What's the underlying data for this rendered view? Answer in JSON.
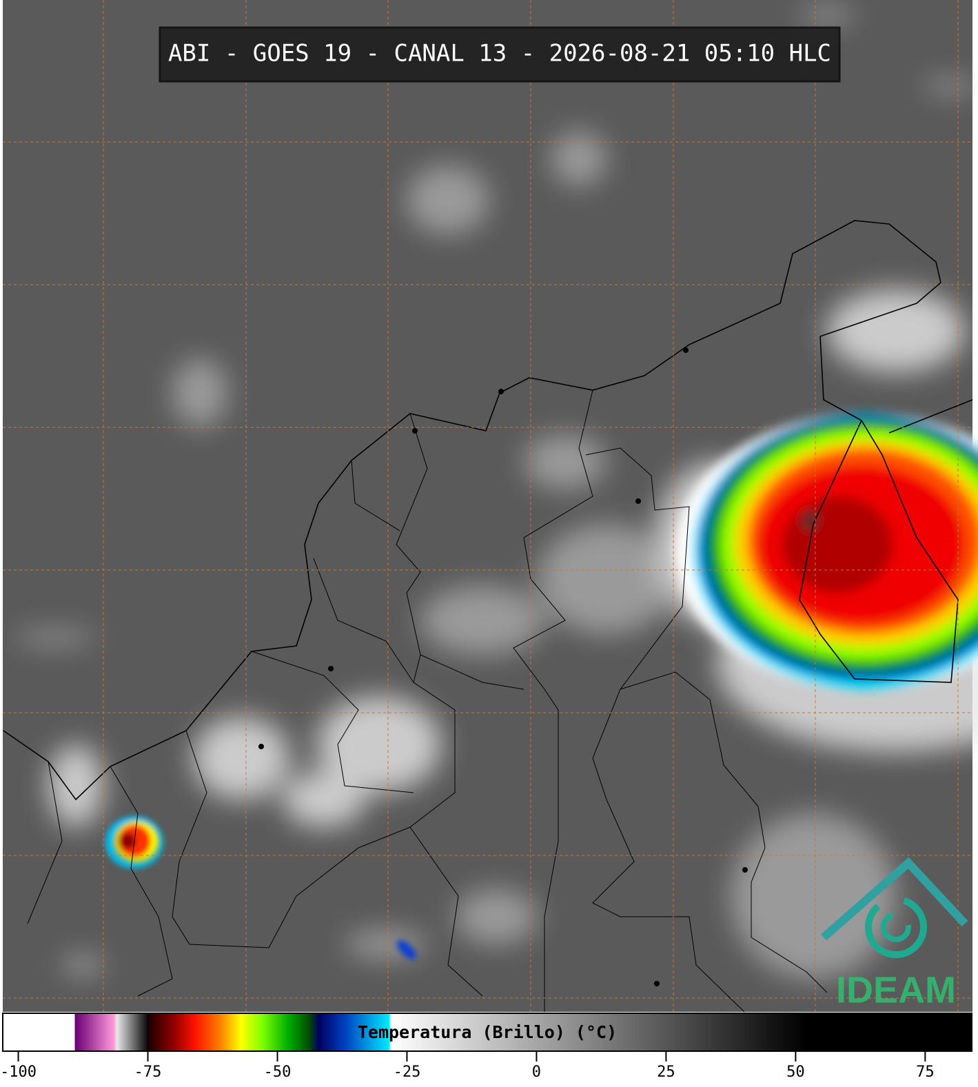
{
  "title": "ABI - GOES 19 - CANAL 13 - 2026-08-21 05:10 HLC",
  "colorbar": {
    "label": "Temperatura (Brillo) (°C)",
    "lim": [
      -103,
      84
    ],
    "ticks": [
      -100,
      -75,
      -50,
      -25,
      0,
      25,
      50,
      75
    ],
    "stops": [
      {
        "value": -103,
        "color": "#ffffff"
      },
      {
        "value": -89.2,
        "color": "#ffffff"
      },
      {
        "value": -89,
        "color": "#6a0078"
      },
      {
        "value": -81.5,
        "color": "#ff9ad8"
      },
      {
        "value": -81,
        "color": "#e8e8e8"
      },
      {
        "value": -75.2,
        "color": "#101010"
      },
      {
        "value": -75,
        "color": "#1a0000"
      },
      {
        "value": -70,
        "color": "#900000"
      },
      {
        "value": -66,
        "color": "#ff1000"
      },
      {
        "value": -61,
        "color": "#ff8000"
      },
      {
        "value": -57,
        "color": "#ffff00"
      },
      {
        "value": -53,
        "color": "#80ff00"
      },
      {
        "value": -48,
        "color": "#00b000"
      },
      {
        "value": -44,
        "color": "#005000"
      },
      {
        "value": -42,
        "color": "#000060"
      },
      {
        "value": -37,
        "color": "#0040c0"
      },
      {
        "value": -28.5,
        "color": "#00e8ff"
      },
      {
        "value": -28,
        "color": "#ffffff"
      },
      {
        "value": 52,
        "color": "#000000"
      },
      {
        "value": 84,
        "color": "#000000"
      }
    ]
  },
  "logo": "IDEAM"
}
